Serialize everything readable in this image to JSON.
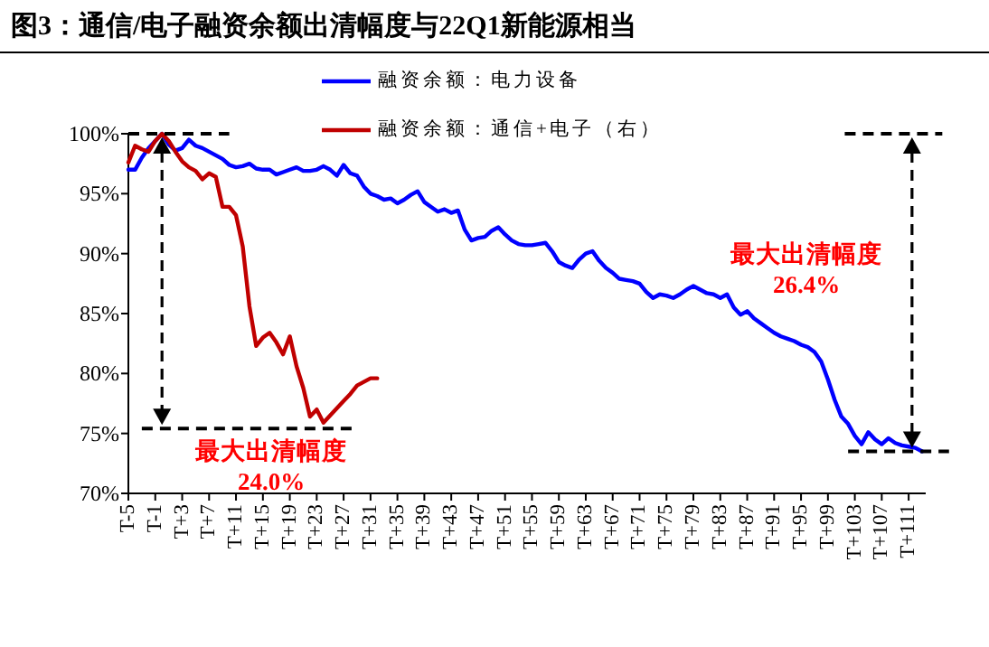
{
  "chart_data": {
    "type": "line",
    "title": "图3：通信/电子融资余额出清幅度与22Q1新能源相当",
    "categories": [
      "T-5",
      null,
      null,
      null,
      "T-1",
      null,
      null,
      null,
      "T+3",
      null,
      null,
      null,
      "T+7",
      null,
      null,
      null,
      "T+11",
      null,
      null,
      null,
      "T+15",
      null,
      null,
      null,
      "T+19",
      null,
      null,
      null,
      "T+23",
      null,
      null,
      null,
      "T+27",
      null,
      null,
      null,
      "T+31",
      null,
      null,
      null,
      "T+35",
      null,
      null,
      null,
      "T+39",
      null,
      null,
      null,
      "T+43",
      null,
      null,
      null,
      "T+47",
      null,
      null,
      null,
      "T+51",
      null,
      null,
      null,
      "T+55",
      null,
      null,
      null,
      "T+59",
      null,
      null,
      null,
      "T+63",
      null,
      null,
      null,
      "T+67",
      null,
      null,
      null,
      "T+71",
      null,
      null,
      null,
      "T+75",
      null,
      null,
      null,
      "T+79",
      null,
      null,
      null,
      "T+83",
      null,
      null,
      null,
      "T+87",
      null,
      null,
      null,
      "T+91",
      null,
      null,
      null,
      "T+95",
      null,
      null,
      null,
      "T+99",
      null,
      null,
      null,
      "T+103",
      null,
      null,
      null,
      "T+107",
      null,
      null,
      null,
      "T+111",
      null,
      null
    ],
    "series": [
      {
        "name": "融资余额：电力设备",
        "color": "#0000ff",
        "values": [
          97.0,
          97.0,
          98.0,
          98.8,
          99.4,
          100,
          99.1,
          98.6,
          98.8,
          99.5,
          99.0,
          98.8,
          98.5,
          98.2,
          97.9,
          97.4,
          97.2,
          97.3,
          97.5,
          97.1,
          97.0,
          97.0,
          96.6,
          96.8,
          97.0,
          97.2,
          96.9,
          96.9,
          97.0,
          97.3,
          97.0,
          96.5,
          97.4,
          96.7,
          96.5,
          95.6,
          95.0,
          94.8,
          94.5,
          94.6,
          94.2,
          94.5,
          94.9,
          95.2,
          94.3,
          93.9,
          93.5,
          93.7,
          93.4,
          93.6,
          92.0,
          91.1,
          91.3,
          91.4,
          91.9,
          92.2,
          91.6,
          91.1,
          90.8,
          90.7,
          90.7,
          90.8,
          90.9,
          90.2,
          89.3,
          89.0,
          88.8,
          89.5,
          90.0,
          90.2,
          89.4,
          88.8,
          88.4,
          87.9,
          87.8,
          87.7,
          87.5,
          86.8,
          86.3,
          86.6,
          86.5,
          86.3,
          86.6,
          87.0,
          87.3,
          87.0,
          86.7,
          86.6,
          86.3,
          86.6,
          85.5,
          84.9,
          85.2,
          84.6,
          84.2,
          83.8,
          83.4,
          83.1,
          82.9,
          82.7,
          82.4,
          82.2,
          81.8,
          81.0,
          79.5,
          77.8,
          76.4,
          75.8,
          74.8,
          74.1,
          75.1,
          74.5,
          74.1,
          74.6,
          74.2,
          74.0,
          73.9,
          73.8,
          73.5
        ]
      },
      {
        "name": "融资余额：通信+电子（右）",
        "color": "#c00000",
        "values": [
          97.6,
          99.0,
          98.7,
          98.5,
          99.4,
          100,
          99.4,
          98.5,
          97.7,
          97.2,
          96.9,
          96.2,
          96.7,
          96.4,
          93.9,
          93.9,
          93.2,
          90.6,
          85.6,
          82.3,
          83.0,
          83.4,
          82.6,
          81.6,
          83.1,
          80.6,
          78.8,
          76.4,
          77.0,
          75.9,
          76.5,
          77.1,
          77.7,
          78.3,
          79.0,
          79.3,
          79.6,
          79.6,
          null,
          null,
          null,
          null,
          null,
          null,
          null,
          null,
          null,
          null,
          null,
          null,
          null,
          null,
          null,
          null,
          null,
          null,
          null,
          null,
          null,
          null,
          null,
          null,
          null,
          null,
          null,
          null,
          null,
          null,
          null,
          null,
          null,
          null,
          null,
          null,
          null,
          null,
          null,
          null,
          null,
          null,
          null,
          null,
          null,
          null,
          null,
          null,
          null,
          null,
          null,
          null,
          null,
          null,
          null,
          null,
          null,
          null,
          null,
          null,
          null,
          null,
          null,
          null,
          null,
          null,
          null,
          null,
          null,
          null,
          null,
          null,
          null,
          null,
          null,
          null,
          null,
          null,
          null,
          null,
          null
        ]
      }
    ],
    "ylim": [
      70,
      100
    ],
    "yticks": [
      {
        "value": 70,
        "label": "70%"
      },
      {
        "value": 75,
        "label": "75%"
      },
      {
        "value": 80,
        "label": "80%"
      },
      {
        "value": 85,
        "label": "85%"
      },
      {
        "value": 90,
        "label": "90%"
      },
      {
        "value": 95,
        "label": "95%"
      },
      {
        "value": 100,
        "label": "100%"
      }
    ],
    "legend": "top",
    "annotations": [
      "最大出清幅度\n24.0%",
      "最大出清幅度\n26.4%"
    ]
  }
}
